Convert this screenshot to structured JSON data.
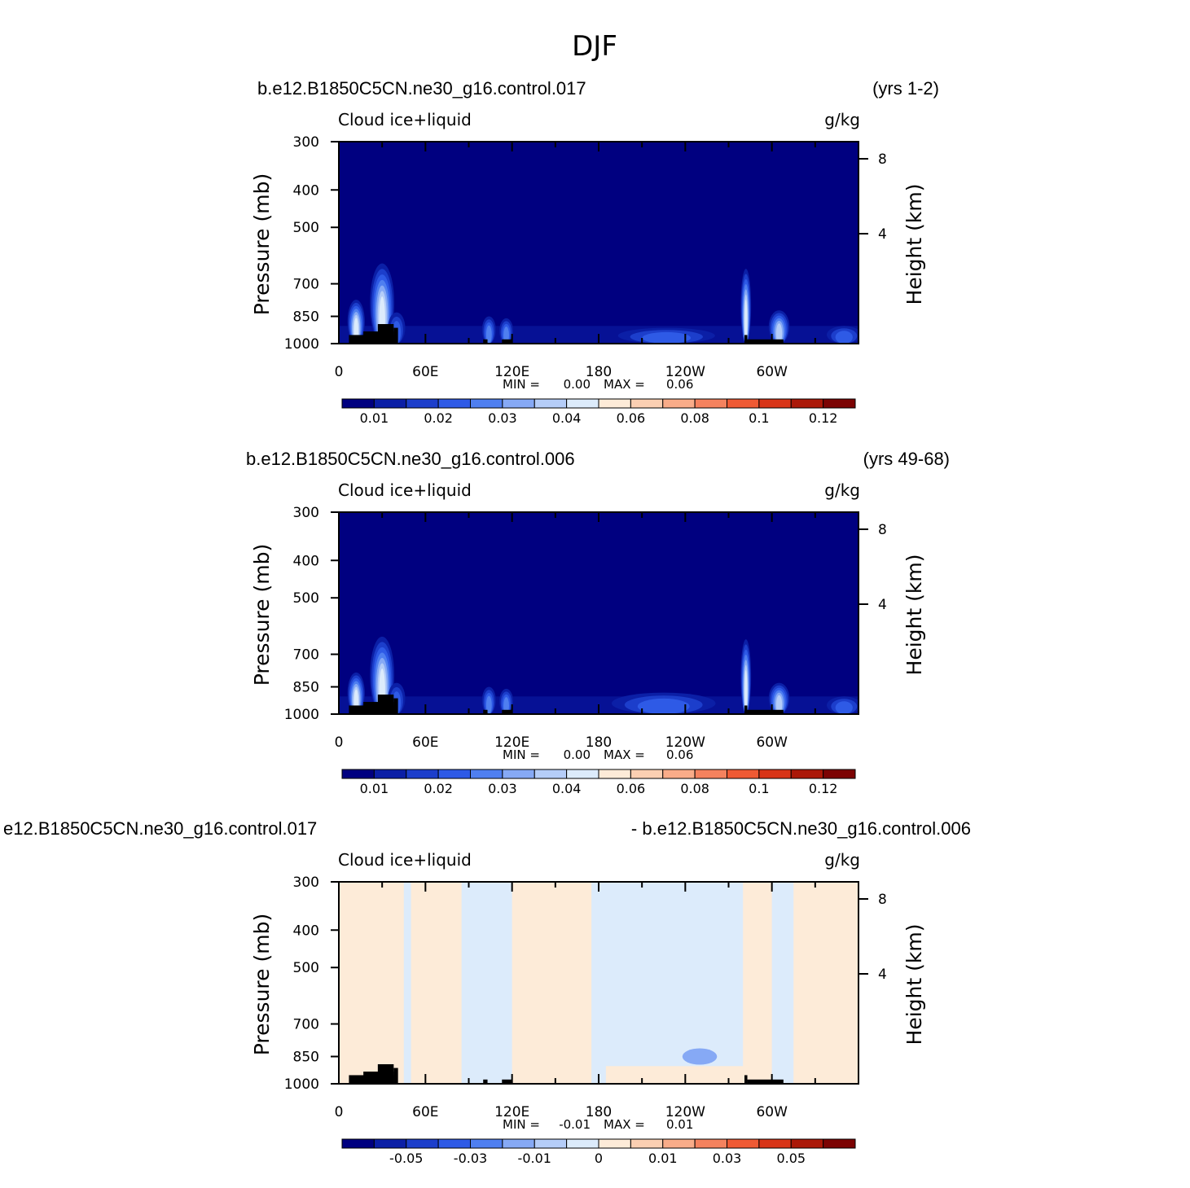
{
  "figure_title": "DJF",
  "colors": {
    "frame": "#000000",
    "land_mask": "#000000",
    "colorbar_palette": [
      "#000080",
      "#0b1fa6",
      "#1c3ecb",
      "#2e5ae6",
      "#4f7ff0",
      "#86a9f5",
      "#b5cdf8",
      "#dcebfb",
      "#fdebd8",
      "#fbcfb2",
      "#f9ac89",
      "#f5825e",
      "#ef5a34",
      "#d83417",
      "#ab1808",
      "#7c0303"
    ]
  },
  "chart_data": [
    {
      "type": "heatmap",
      "case_label": "b.e12.B1850C5CN.ne30_g16.control.017",
      "years_label": "(yrs 1-2)",
      "variable": "Cloud ice+liquid",
      "units": "g/kg",
      "ylabel": "Pressure (mb)",
      "y2label": "Height (km)",
      "y_ticks": [
        "300",
        "400",
        "500",
        "700",
        "850",
        "1000"
      ],
      "y_tick_values": [
        300,
        400,
        500,
        700,
        850,
        1000
      ],
      "y2_ticks": [
        "8",
        "4"
      ],
      "y2_tick_values": [
        8,
        4
      ],
      "x_ticks": [
        "0",
        "60E",
        "120E",
        "180",
        "120W",
        "60W"
      ],
      "x_tick_values": [
        0,
        60,
        120,
        180,
        240,
        300
      ],
      "xlim": [
        0,
        360
      ],
      "ylim": [
        1000,
        300
      ],
      "min_label": "MIN =",
      "min_value": "0.00",
      "max_label": "MAX =",
      "max_value": "0.06",
      "colorbar_labels": [
        "0.01",
        "0.02",
        "0.03",
        "0.04",
        "0.06",
        "0.08",
        "0.1",
        "0.12"
      ],
      "background_level": 0,
      "features": [
        {
          "lon": 12,
          "p_top": 770,
          "lon_w": 5,
          "level": 7,
          "name": "africa-west"
        },
        {
          "lon": 30,
          "p_top": 620,
          "lon_w": 7,
          "level": 7,
          "name": "africa-east"
        },
        {
          "lon": 40,
          "p_top": 830,
          "lon_w": 5,
          "level": 3,
          "name": "horn"
        },
        {
          "lon": 104,
          "p_top": 850,
          "lon_w": 4,
          "level": 4,
          "name": "maritime-w"
        },
        {
          "lon": 116,
          "p_top": 860,
          "lon_w": 4,
          "level": 4,
          "name": "maritime-e"
        },
        {
          "lon": 227,
          "p_top": 910,
          "lon_w": 28,
          "level": 3,
          "name": "east-pacific"
        },
        {
          "lon": 282,
          "p_top": 640,
          "lon_w": 3,
          "level": 7,
          "name": "andes"
        },
        {
          "lon": 305,
          "p_top": 820,
          "lon_w": 6,
          "level": 6,
          "name": "amazon"
        },
        {
          "lon": 350,
          "p_top": 900,
          "lon_w": 10,
          "level": 3,
          "name": "atlantic"
        }
      ]
    },
    {
      "type": "heatmap",
      "case_label": "b.e12.B1850C5CN.ne30_g16.control.006",
      "years_label": "(yrs 49-68)",
      "variable": "Cloud ice+liquid",
      "units": "g/kg",
      "ylabel": "Pressure (mb)",
      "y2label": "Height (km)",
      "y_ticks": [
        "300",
        "400",
        "500",
        "700",
        "850",
        "1000"
      ],
      "y_tick_values": [
        300,
        400,
        500,
        700,
        850,
        1000
      ],
      "y2_ticks": [
        "8",
        "4"
      ],
      "y2_tick_values": [
        8,
        4
      ],
      "x_ticks": [
        "0",
        "60E",
        "120E",
        "180",
        "120W",
        "60W"
      ],
      "x_tick_values": [
        0,
        60,
        120,
        180,
        240,
        300
      ],
      "xlim": [
        0,
        360
      ],
      "ylim": [
        1000,
        300
      ],
      "min_label": "MIN =",
      "min_value": "0.00",
      "max_label": "MAX =",
      "max_value": "0.06",
      "colorbar_labels": [
        "0.01",
        "0.02",
        "0.03",
        "0.04",
        "0.06",
        "0.08",
        "0.1",
        "0.12"
      ],
      "background_level": 0,
      "features": [
        {
          "lon": 12,
          "p_top": 780,
          "lon_w": 5,
          "level": 7,
          "name": "africa-west"
        },
        {
          "lon": 30,
          "p_top": 630,
          "lon_w": 7,
          "level": 7,
          "name": "africa-east"
        },
        {
          "lon": 40,
          "p_top": 830,
          "lon_w": 5,
          "level": 3,
          "name": "horn"
        },
        {
          "lon": 104,
          "p_top": 850,
          "lon_w": 4,
          "level": 4,
          "name": "maritime-w"
        },
        {
          "lon": 116,
          "p_top": 860,
          "lon_w": 4,
          "level": 4,
          "name": "maritime-e"
        },
        {
          "lon": 225,
          "p_top": 880,
          "lon_w": 30,
          "level": 3,
          "name": "east-pacific"
        },
        {
          "lon": 282,
          "p_top": 640,
          "lon_w": 3,
          "level": 7,
          "name": "andes"
        },
        {
          "lon": 305,
          "p_top": 830,
          "lon_w": 6,
          "level": 6,
          "name": "amazon"
        },
        {
          "lon": 350,
          "p_top": 900,
          "lon_w": 10,
          "level": 3,
          "name": "atlantic"
        }
      ]
    },
    {
      "type": "heatmap",
      "case_label": "e12.B1850C5CN.ne30_g16.control.017",
      "years_label": "- b.e12.B1850C5CN.ne30_g16.control.006",
      "variable": "Cloud ice+liquid",
      "units": "g/kg",
      "ylabel": "Pressure (mb)",
      "y2label": "Height (km)",
      "y_ticks": [
        "300",
        "400",
        "500",
        "700",
        "850",
        "1000"
      ],
      "y_tick_values": [
        300,
        400,
        500,
        700,
        850,
        1000
      ],
      "y2_ticks": [
        "8",
        "4"
      ],
      "y2_tick_values": [
        8,
        4
      ],
      "x_ticks": [
        "0",
        "60E",
        "120E",
        "180",
        "120W",
        "60W"
      ],
      "x_tick_values": [
        0,
        60,
        120,
        180,
        240,
        300
      ],
      "xlim": [
        0,
        360
      ],
      "ylim": [
        1000,
        300
      ],
      "min_label": "MIN =",
      "min_value": "-0.01",
      "max_label": "MAX =",
      "max_value": "0.01",
      "colorbar_labels": [
        "-0.05",
        "-0.03",
        "-0.01",
        "0",
        "0.01",
        "0.03",
        "0.05"
      ],
      "background_level": 7,
      "positive_bands": [
        {
          "lon0": 0,
          "lon1": 45,
          "p_top": 300
        },
        {
          "lon0": 50,
          "lon1": 85,
          "p_top": 300
        },
        {
          "lon0": 120,
          "lon1": 175,
          "p_top": 300
        },
        {
          "lon0": 280,
          "lon1": 300,
          "p_top": 300
        },
        {
          "lon0": 315,
          "lon1": 360,
          "p_top": 300
        },
        {
          "lon0": 185,
          "lon1": 285,
          "p_top": 900
        }
      ],
      "negative_spots": [
        {
          "lon": 250,
          "p": 850,
          "lon_w": 12
        }
      ]
    }
  ]
}
